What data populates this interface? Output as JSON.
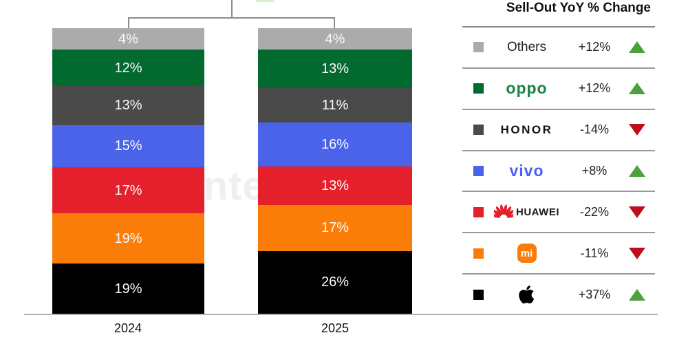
{
  "watermark": {
    "text": "Counterpoint"
  },
  "chart_data": {
    "type": "stacked-bar",
    "categories": [
      "2024",
      "2025"
    ],
    "unit": "%",
    "value_suffix": "%",
    "legend_title": "Sell-Out YoY % Change",
    "legend_position": "right",
    "axis": {
      "baseline": true,
      "gridlines": false
    },
    "series": [
      {
        "name": "Others",
        "logo": "others",
        "color": "#ababab",
        "values": [
          4,
          4
        ],
        "yoy": "+12%",
        "trend": "up"
      },
      {
        "name": "OPPO",
        "logo": "oppo",
        "color": "#02692f",
        "values": [
          12,
          13
        ],
        "yoy": "+12%",
        "trend": "up"
      },
      {
        "name": "HONOR",
        "logo": "honor",
        "color": "#4a4a4a",
        "values": [
          13,
          11
        ],
        "yoy": "-14%",
        "trend": "down"
      },
      {
        "name": "vivo",
        "logo": "vivo",
        "color": "#4a63e8",
        "values": [
          15,
          16
        ],
        "yoy": "+8%",
        "trend": "up"
      },
      {
        "name": "HUAWEI",
        "logo": "huawei",
        "color": "#e4202c",
        "values": [
          17,
          13
        ],
        "yoy": "-22%",
        "trend": "down"
      },
      {
        "name": "Xiaomi",
        "logo": "xiaomi",
        "color": "#fb7d09",
        "values": [
          19,
          17
        ],
        "yoy": "-11%",
        "trend": "down"
      },
      {
        "name": "Apple",
        "logo": "apple",
        "color": "#000000",
        "values": [
          19,
          26
        ],
        "yoy": "+37%",
        "trend": "up"
      }
    ],
    "colors": {
      "trend_up": "#4ca13c",
      "trend_down": "#be0e1c"
    }
  },
  "logo_text": {
    "oppo": "oppo",
    "honor": "HONOR",
    "vivo": "vivo",
    "huawei": "HUAWEI",
    "xiaomi": "mi"
  }
}
